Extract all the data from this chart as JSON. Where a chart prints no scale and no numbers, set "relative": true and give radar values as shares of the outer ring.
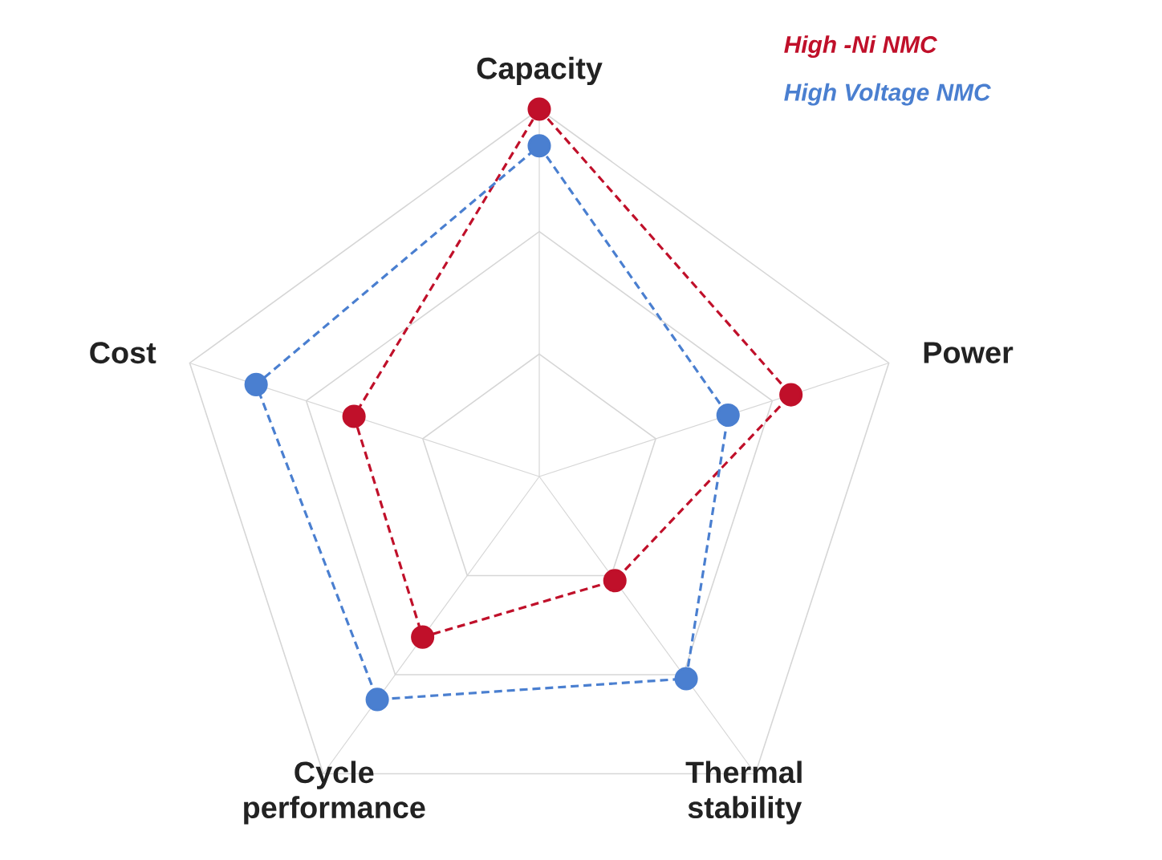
{
  "chart_data": {
    "type": "radar",
    "relative": true,
    "grid": true,
    "legend": "top right",
    "marker": "circle",
    "line_style": "dashed",
    "categories": [
      "Capacity",
      "Power",
      "Thermal stability",
      "Cycle performance",
      "Cost"
    ],
    "series": [
      {
        "name": "High -Ni NMC",
        "color": "#c0102a",
        "values": [
          1.0,
          0.72,
          0.35,
          0.54,
          0.53
        ]
      },
      {
        "name": "High Voltage NMC",
        "color": "#4a7fd0",
        "values": [
          0.9,
          0.54,
          0.68,
          0.75,
          0.81
        ]
      }
    ]
  }
}
